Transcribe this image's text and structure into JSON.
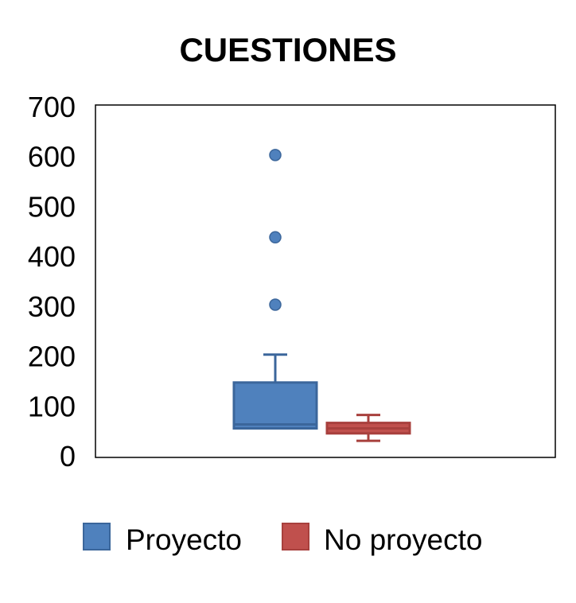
{
  "chart_data": {
    "type": "boxplot",
    "title": "CUESTIONES",
    "ylim": [
      0,
      700
    ],
    "yticks": [
      0,
      100,
      200,
      300,
      400,
      500,
      600,
      700
    ],
    "ytick_labels": [
      "0",
      "100",
      "200",
      "300",
      "400",
      "500",
      "600",
      "700"
    ],
    "grid": false,
    "legend_position": "bottom",
    "series": [
      {
        "name": "Proyecto",
        "color": "#4F81BD",
        "stroke": "#3B669B",
        "whisker_low": 55,
        "q1": 55,
        "median": 63,
        "q3": 147,
        "whisker_high": 203,
        "outliers": [
          303,
          438,
          603
        ]
      },
      {
        "name": "No proyecto",
        "color": "#C0504D",
        "stroke": "#A8403D",
        "whisker_low": 30,
        "q1": 45,
        "median": 55,
        "q3": 66,
        "whisker_high": 82,
        "outliers": []
      }
    ]
  }
}
